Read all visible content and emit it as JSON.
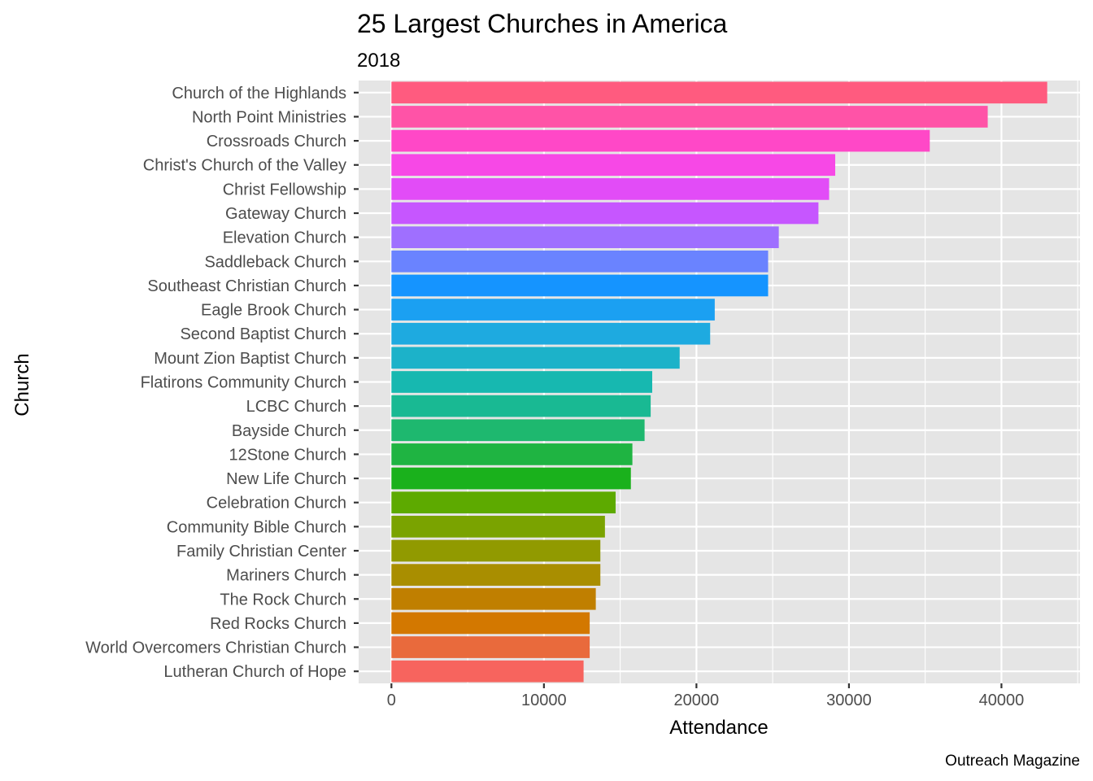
{
  "chart_data": {
    "type": "bar",
    "orientation": "horizontal",
    "title": "25 Largest Churches in America",
    "subtitle": "2018",
    "xlabel": "Attendance",
    "ylabel": "Church",
    "caption": "Outreach Magazine",
    "xlim": [
      -2150,
      45150
    ],
    "x_ticks": [
      0,
      10000,
      20000,
      30000,
      40000
    ],
    "x_tick_labels": [
      "0",
      "10000",
      "20000",
      "30000",
      "40000"
    ],
    "grid": true,
    "legend": "none",
    "panel_background": "#e5e5e5",
    "categories": [
      "Church of the Highlands",
      "North Point Ministries",
      "Crossroads Church",
      "Christ's Church of the Valley",
      "Christ Fellowship",
      "Gateway Church",
      "Elevation Church",
      "Saddleback Church",
      "Southeast Christian Church",
      "Eagle Brook Church",
      "Second Baptist Church",
      "Mount Zion Baptist Church",
      "Flatirons Community Church",
      "LCBC Church",
      "Bayside Church",
      "12Stone Church",
      "New Life Church",
      "Celebration Church",
      "Community Bible Church",
      "Family Christian Center",
      "Mariners Church",
      "The Rock Church",
      "Red Rocks Church",
      "World Overcomers Christian Church",
      "Lutheran Church of Hope"
    ],
    "values": [
      43000,
      39100,
      35300,
      29100,
      28700,
      28000,
      25400,
      24700,
      24700,
      21200,
      20900,
      18900,
      17100,
      17000,
      16600,
      15800,
      15700,
      14700,
      14000,
      13700,
      13700,
      13400,
      13000,
      13000,
      12600
    ],
    "colors": [
      "#ff5b7f",
      "#ff53a7",
      "#ff48c7",
      "#f748e6",
      "#e24cf7",
      "#c656ff",
      "#9f6fff",
      "#6a83ff",
      "#1594ff",
      "#1ba0f2",
      "#1eaae0",
      "#1cb2c9",
      "#17b8b0",
      "#19b993",
      "#1eb86f",
      "#1fb442",
      "#1ab11c",
      "#5daa00",
      "#7aa300",
      "#919a00",
      "#a98e00",
      "#c07f00",
      "#d37800",
      "#e96a3c",
      "#f7645e"
    ]
  }
}
